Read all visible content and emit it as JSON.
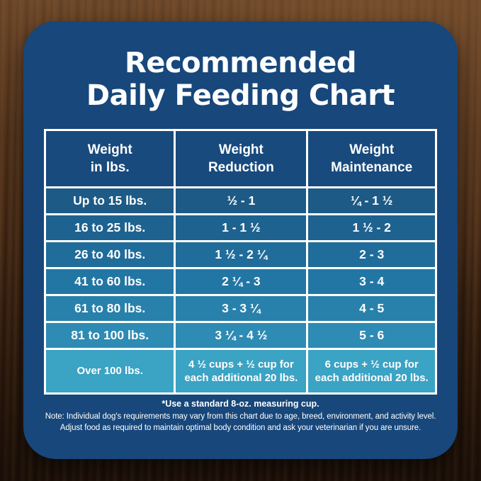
{
  "title": {
    "line1": "Recommended",
    "line2": "Daily Feeding Chart"
  },
  "colors": {
    "card_bg": "#17477B",
    "header_bg": "#184A7D",
    "border": "#FFFFFF",
    "text": "#FFFFFF",
    "wood_dark": "#311D0F",
    "wood_mid": "#5E3C22",
    "row_bgs": [
      "#1D5A85",
      "#1E6290",
      "#206C9A",
      "#2276A4",
      "#2881AB",
      "#2D8BB4",
      "#3BA3C4"
    ]
  },
  "table": {
    "headers": [
      "Weight\nin lbs.",
      "Weight\nReduction",
      "Weight\nMaintenance"
    ],
    "rows": [
      {
        "weight": "Up to 15 lbs.",
        "reduction": "½ - 1",
        "maintenance": "¼ - 1 ½"
      },
      {
        "weight": "16 to 25 lbs.",
        "reduction": "1 - 1 ½",
        "maintenance": "1 ½ - 2"
      },
      {
        "weight": "26 to 40 lbs.",
        "reduction": "1 ½ - 2 ¼",
        "maintenance": "2 - 3"
      },
      {
        "weight": "41 to 60 lbs.",
        "reduction": "2 ¼ - 3",
        "maintenance": "3 - 4"
      },
      {
        "weight": "61 to 80 lbs.",
        "reduction": "3 - 3 ¼",
        "maintenance": "4 - 5"
      },
      {
        "weight": "81 to 100 lbs.",
        "reduction": "3 ¼ - 4 ½",
        "maintenance": "5 - 6"
      },
      {
        "weight": "Over 100 lbs.",
        "reduction": "4 ½ cups + ½ cup for\neach additional 20 lbs.",
        "maintenance": "6 cups + ½ cup for\neach additional 20 lbs."
      }
    ]
  },
  "footer": {
    "cup_note": "*Use a standard 8-oz. measuring cup.",
    "note_line1": "Note: Individual dog's requirements may vary from this chart due to age, breed, environment, and activity level.",
    "note_line2": "Adjust food as required to maintain optimal body condition and ask your veterinarian if you are unsure."
  },
  "chart_data": {
    "type": "table",
    "title": "Recommended Daily Feeding Chart",
    "columns": [
      "Weight in lbs.",
      "Weight Reduction",
      "Weight Maintenance"
    ],
    "rows": [
      [
        "Up to 15 lbs.",
        "½ - 1",
        "¼ - 1 ½"
      ],
      [
        "16 to 25 lbs.",
        "1 - 1 ½",
        "1 ½ - 2"
      ],
      [
        "26 to 40 lbs.",
        "1 ½ - 2 ¼",
        "2 - 3"
      ],
      [
        "41 to 60 lbs.",
        "2 ¼ - 3",
        "3 - 4"
      ],
      [
        "61 to 80 lbs.",
        "3 - 3 ¼",
        "4 - 5"
      ],
      [
        "81 to 100 lbs.",
        "3 ¼ - 4 ½",
        "5 - 6"
      ],
      [
        "Over 100 lbs.",
        "4 ½ cups + ½ cup for each additional 20 lbs.",
        "6 cups + ½ cup for each additional 20 lbs."
      ]
    ],
    "footnotes": [
      "*Use a standard 8-oz. measuring cup.",
      "Note: Individual dog's requirements may vary from this chart due to age, breed, environment, and activity level.",
      "Adjust food as required to maintain optimal body condition and ask your veterinarian if you are unsure."
    ]
  }
}
